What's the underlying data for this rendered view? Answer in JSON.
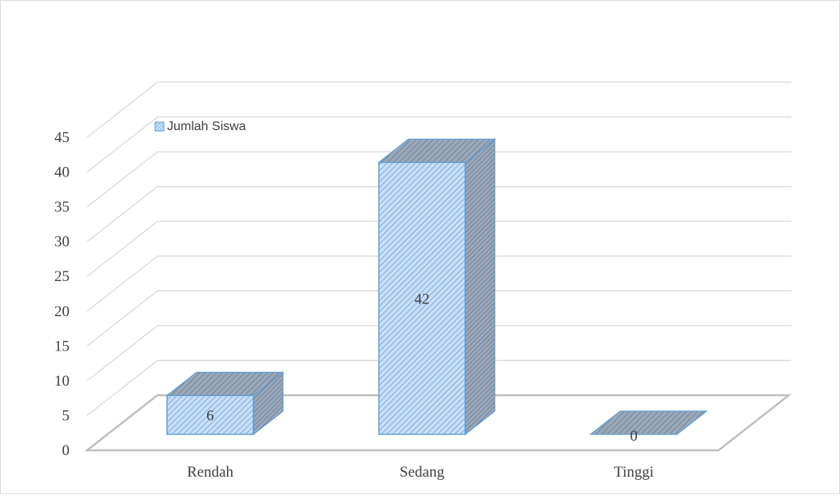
{
  "chart_data": {
    "type": "bar",
    "categories": [
      "Rendah",
      "Sedang",
      "Tinggi"
    ],
    "series": [
      {
        "name": "Jumlah Siswa",
        "values": [
          6,
          42,
          0
        ]
      }
    ],
    "data_labels": [
      "6",
      "42",
      "0"
    ],
    "title": "",
    "xlabel": "",
    "ylabel": "",
    "ylim": [
      0,
      45
    ],
    "yticks": [
      "0",
      "5",
      "10",
      "15",
      "20",
      "25",
      "30",
      "35",
      "40",
      "45"
    ],
    "grid": true,
    "three_d": true,
    "legend_position": "top-left",
    "colors": {
      "bar_front": "#c9def6",
      "bar_hatch": "#5b9bd5",
      "bar_side": "#8497b0",
      "bar_edge": "#5b9bd5",
      "grid": "#d9d9d9",
      "floor": "#bfbfbf",
      "text": "#404040"
    }
  }
}
